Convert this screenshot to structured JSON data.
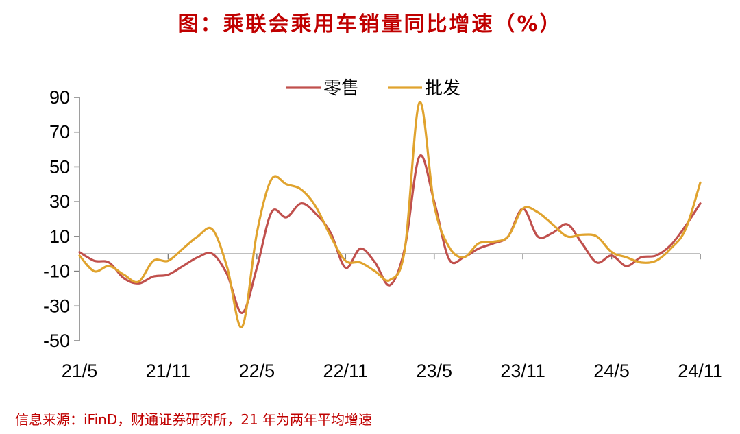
{
  "header": {
    "title": "图：乘联会乘用车销量同比增速（%）"
  },
  "footer": {
    "source": "信息来源：iFinD，财通证券研究所，21 年为两年平均增速"
  },
  "colors": {
    "retail": "#c0504d",
    "wholesale": "#e0a32e",
    "axis": "#7f7f7f"
  },
  "chart_data": {
    "type": "line",
    "x_ticks": [
      "21/5",
      "21/11",
      "22/5",
      "22/11",
      "23/5",
      "23/11",
      "24/5",
      "24/11"
    ],
    "ylim": [
      -50,
      90
    ],
    "y_ticks": [
      "90",
      "70",
      "50",
      "30",
      "10",
      "-10",
      "-30",
      "-50"
    ],
    "legend_position": "top-center",
    "series": [
      {
        "name": "零售",
        "color": "#c0504d",
        "values": [
          1,
          -4,
          -5,
          -14,
          -17,
          -13,
          -12,
          -7,
          -2,
          0,
          -12,
          -34,
          -8,
          24,
          21,
          29,
          23,
          12,
          -8,
          3,
          -5,
          -18,
          3,
          56,
          30,
          -3,
          -2,
          3,
          6,
          10,
          26,
          10,
          12,
          17,
          6,
          -5,
          -1,
          -7,
          -2,
          -1,
          5,
          16,
          29
        ]
      },
      {
        "name": "批发",
        "color": "#e0a32e",
        "values": [
          -1,
          -10,
          -7,
          -12,
          -16,
          -4,
          -4,
          3,
          10,
          14,
          -8,
          -42,
          12,
          43,
          40,
          37,
          27,
          10,
          -4,
          -5,
          -10,
          -15,
          2,
          87,
          28,
          4,
          -2,
          6,
          7,
          10,
          26,
          24,
          17,
          10,
          11,
          10,
          1,
          -2,
          -5,
          -4,
          3,
          14,
          41
        ]
      }
    ]
  }
}
